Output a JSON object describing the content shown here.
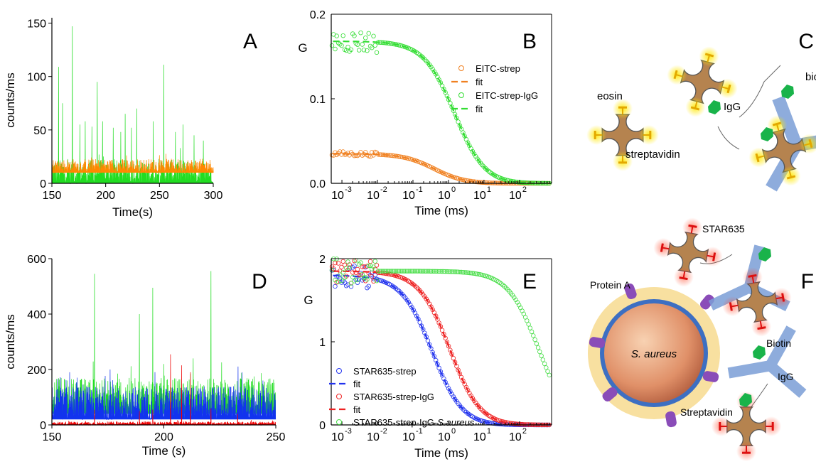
{
  "panelA": {
    "letter": "A",
    "xlabel": "Time(s)",
    "ylabel": "counts/ms",
    "xticks": [
      "150",
      "200",
      "250",
      "300"
    ],
    "yticks": [
      "0",
      "50",
      "100",
      "150"
    ],
    "colors": {
      "green": "#22dd22",
      "orange": "#ff8800"
    }
  },
  "panelB": {
    "letter": "B",
    "xlabel": "Time (ms)",
    "ylabel": "G",
    "yticks": [
      "0.0",
      "0.1",
      "0.2"
    ],
    "xticks": [
      "-3",
      "-2",
      "-1",
      "0",
      "1",
      "2"
    ],
    "legend": [
      "EITC-strep",
      "fit",
      "EITC-strep-IgG",
      "fit"
    ]
  },
  "panelC": {
    "letter": "C",
    "labels": {
      "eosin": "eosin",
      "streptavidin": "streptavidin",
      "biotin": "biotin",
      "igg": "IgG"
    }
  },
  "panelD": {
    "letter": "D",
    "xlabel": "Time (s)",
    "ylabel": "counts/ms",
    "xticks": [
      "150",
      "200",
      "250"
    ],
    "yticks": [
      "0",
      "200",
      "400",
      "600"
    ],
    "colors": {
      "green": "#22dd22",
      "blue": "#1133ee",
      "red": "#ee0000"
    }
  },
  "panelE": {
    "letter": "E",
    "xlabel": "Time (ms)",
    "ylabel": "G",
    "yticks": [
      "0",
      "1",
      "2"
    ],
    "xticks": [
      "-3",
      "-2",
      "-1",
      "0",
      "1",
      "2"
    ],
    "legend": [
      "STAR635-strep",
      "fit",
      "STAR635-strep-IgG",
      "fit",
      "STAR635-strep-IgG-"
    ],
    "legend_italic": "S.aureus"
  },
  "panelF": {
    "letter": "F",
    "labels": {
      "star": "STAR635",
      "proteinA": "Protein A",
      "saureus": "S. aureus",
      "biotin": "Biotin",
      "igg": "IgG",
      "streptavidin": "Streptavidin"
    }
  },
  "chart_data": [
    {
      "type": "line",
      "panel": "A",
      "xlabel": "Time(s)",
      "ylabel": "counts/ms",
      "xlim": [
        150,
        300
      ],
      "ylim": [
        0,
        155
      ],
      "series": [
        {
          "color": "#22dd22",
          "baseline": [
            0,
            22
          ],
          "spikes": [
            [
              156,
              109
            ],
            [
              160,
              75
            ],
            [
              169,
              147
            ],
            [
              176,
              55
            ],
            [
              181,
              58
            ],
            [
              187,
              53
            ],
            [
              192,
              95
            ],
            [
              197,
              58
            ],
            [
              207,
              52
            ],
            [
              214,
              48
            ],
            [
              218,
              65
            ],
            [
              224,
              52
            ],
            [
              229,
              70
            ],
            [
              244,
              58
            ],
            [
              254,
              111
            ],
            [
              265,
              48
            ],
            [
              272,
              55
            ],
            [
              282,
              45
            ],
            [
              291,
              40
            ]
          ]
        },
        {
          "color": "#ff8800",
          "baseline": [
            10,
            23
          ],
          "spikes": []
        }
      ]
    },
    {
      "type": "scatter",
      "panel": "B",
      "xlabel": "Time (ms)",
      "ylabel": "G",
      "xscale": "log",
      "xlim": [
        0.0005,
        800
      ],
      "ylim": [
        0,
        0.2
      ],
      "series": [
        {
          "name": "EITC-strep",
          "style": "circles",
          "color": "#f08020",
          "model": {
            "g0": 0.035,
            "tau": 0.4
          }
        },
        {
          "name": "fit",
          "style": "dashed",
          "color": "#f08020",
          "model": {
            "g0": 0.035,
            "tau": 0.4
          }
        },
        {
          "name": "EITC-strep-IgG",
          "style": "circles",
          "color": "#33dd33",
          "model": {
            "g0": 0.168,
            "tau": 1.5
          }
        },
        {
          "name": "fit",
          "style": "dashed",
          "color": "#33dd33",
          "model": {
            "g0": 0.168,
            "tau": 1.5
          }
        }
      ]
    },
    {
      "type": "line",
      "panel": "D",
      "xlabel": "Time (s)",
      "ylabel": "counts/ms",
      "xlim": [
        150,
        250
      ],
      "ylim": [
        0,
        600
      ],
      "series": [
        {
          "color": "#22dd22",
          "baseline": [
            40,
            170
          ],
          "spikes": [
            [
              169,
              545
            ],
            [
              189,
              400
            ],
            [
              195,
              495
            ],
            [
              221,
              555
            ],
            [
              200,
              220
            ],
            [
              213,
              240
            ]
          ]
        },
        {
          "color": "#1133ee",
          "baseline": [
            20,
            140
          ],
          "spikes": [
            [
              158,
              190
            ],
            [
              176,
              200
            ],
            [
              235,
              190
            ]
          ]
        },
        {
          "color": "#ee0000",
          "baseline": [
            0,
            12
          ],
          "spikes": [
            [
              169,
              55
            ],
            [
              189,
              50
            ],
            [
              195,
              55
            ],
            [
              203,
              255
            ],
            [
              208,
              215
            ],
            [
              212,
              190
            ],
            [
              221,
              60
            ],
            [
              233,
              40
            ]
          ]
        }
      ]
    },
    {
      "type": "scatter",
      "panel": "E",
      "xlabel": "Time (ms)",
      "ylabel": "G",
      "xscale": "log",
      "xlim": [
        0.0005,
        800
      ],
      "ylim": [
        0,
        2
      ],
      "series": [
        {
          "name": "STAR635-strep",
          "style": "circles",
          "color": "#2233ee",
          "model": {
            "g0": 1.8,
            "tau": 0.35
          }
        },
        {
          "name": "fit",
          "style": "dashed",
          "color": "#2233ee",
          "model": {
            "g0": 1.8,
            "tau": 0.35
          }
        },
        {
          "name": "STAR635-strep-IgG",
          "style": "circles",
          "color": "#ee2222",
          "model": {
            "g0": 1.85,
            "tau": 1.1
          }
        },
        {
          "name": "fit",
          "style": "dashed",
          "color": "#ee2222",
          "model": {
            "g0": 1.85,
            "tau": 1.1
          }
        },
        {
          "name": "STAR635-strep-IgG-S.aureus",
          "style": "circles",
          "color": "#44dd44",
          "model": {
            "g0": 1.85,
            "tau": 350
          }
        }
      ]
    }
  ]
}
